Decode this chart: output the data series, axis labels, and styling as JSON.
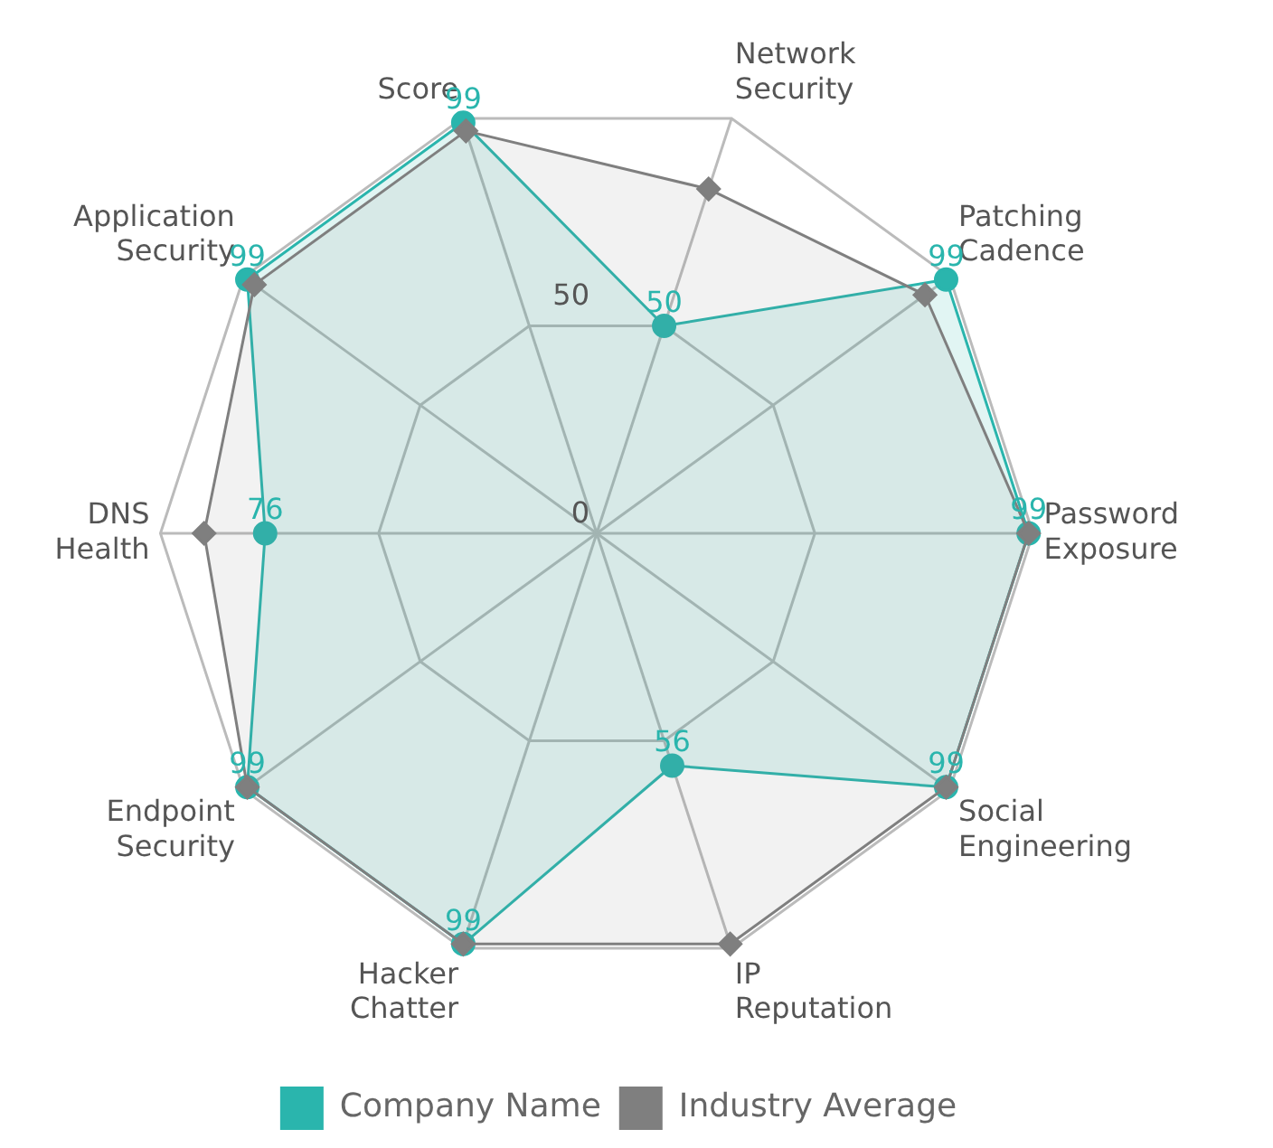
{
  "chart_data": {
    "type": "radar",
    "categories": [
      "Score",
      "Network Security",
      "Patching Cadence",
      "Password Exposure",
      "Social Engineering",
      "IP Reputation",
      "Hacker Chatter",
      "Endpoint Security",
      "DNS Health",
      "Application Security"
    ],
    "series": [
      {
        "name": "Company Name",
        "color": "#2ab5ad",
        "marker": "circle",
        "values": [
          99,
          50,
          99,
          99,
          99,
          56,
          99,
          99,
          76,
          99
        ],
        "value_labels": [
          "99",
          "50",
          "99",
          "99",
          "99",
          "56",
          "99",
          "99",
          "76",
          "99"
        ]
      },
      {
        "name": "Industry Average",
        "color": "#7f7f7f",
        "marker": "diamond",
        "values": [
          97,
          83,
          93,
          99,
          99,
          99,
          99,
          99,
          90,
          97
        ]
      }
    ],
    "ylim": [
      0,
      100
    ],
    "yticks": [
      0,
      50
    ],
    "grid": true,
    "legend": "bottom"
  }
}
